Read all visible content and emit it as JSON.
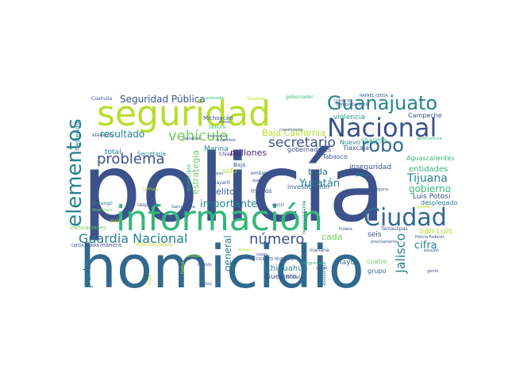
{
  "colors": {
    "background": "#ffffff",
    "palette": [
      "#3b528b",
      "#31688e",
      "#26828e",
      "#1f9e89",
      "#35b779",
      "#6ece58",
      "#b5de2b",
      "#482878",
      "#fde725"
    ]
  },
  "words": [
    {
      "text": "policía",
      "color": "#3b528b"
    },
    {
      "text": "homicidio",
      "color": "#31688e"
    },
    {
      "text": "información",
      "color": "#35b779"
    },
    {
      "text": "seguridad",
      "color": "#b5de2b"
    },
    {
      "text": "Nacional",
      "color": "#3b528b"
    },
    {
      "text": "Guanajuato",
      "color": "#26828e"
    },
    {
      "text": "elementos",
      "color": "#26828e"
    },
    {
      "text": "Ciudad",
      "color": "#31688e"
    },
    {
      "text": "robo",
      "color": "#31688e"
    },
    {
      "text": "Guardia Nacional",
      "color": "#26828e"
    },
    {
      "text": "secretario",
      "color": "#3b528b"
    },
    {
      "text": "problema",
      "color": "#3b528b"
    },
    {
      "text": "vehículo",
      "color": "#6ece58"
    },
    {
      "text": "número",
      "color": "#3b528b"
    },
    {
      "text": "Jalisco",
      "color": "#26828e"
    },
    {
      "text": "Tijuana",
      "color": "#26828e"
    },
    {
      "text": "Seguridad Pública",
      "color": "#3b528b"
    },
    {
      "text": "Baja California",
      "color": "#b5de2b"
    },
    {
      "text": "importante",
      "color": "#26828e"
    },
    {
      "text": "cifra",
      "color": "#26828e"
    },
    {
      "text": "gobierno",
      "color": "#35b779"
    },
    {
      "text": "estrategia",
      "color": "#6ece58"
    },
    {
      "text": "Yucatán",
      "color": "#26828e"
    },
    {
      "text": "resultado",
      "color": "#26828e"
    },
    {
      "text": "parte",
      "color": "#26828e"
    },
    {
      "text": "general",
      "color": "#26828e"
    },
    {
      "text": "entidades",
      "color": "#35b779"
    },
    {
      "text": "millones",
      "color": "#482878"
    },
    {
      "text": "Chihuahua",
      "color": "#26828e"
    },
    {
      "text": "Guerrero",
      "color": "#3b528b"
    },
    {
      "text": "delito",
      "color": "#3b528b"
    },
    {
      "text": "toda",
      "color": "#31688e"
    },
    {
      "text": "Marina",
      "color": "#26828e"
    },
    {
      "text": "cada",
      "color": "#6ece58"
    },
    {
      "text": "San Luis",
      "color": "#b5de2b"
    },
    {
      "text": "Luis Potosí",
      "color": "#3b528b"
    },
    {
      "text": "desplegado",
      "color": "#26828e"
    },
    {
      "text": "Aguascalientes",
      "color": "#35b779"
    },
    {
      "text": "total",
      "color": "#26828e"
    },
    {
      "text": "haciendo",
      "color": "#26828e"
    },
    {
      "text": "sido",
      "color": "#b5de2b"
    },
    {
      "text": "inseguridad",
      "color": "#3b528b"
    },
    {
      "text": "partir",
      "color": "#26828e"
    },
    {
      "text": "mayor",
      "color": "#31688e"
    },
    {
      "text": "seis",
      "color": "#3b528b"
    },
    {
      "text": "menos",
      "color": "#3b528b"
    },
    {
      "text": "Tlaxcala",
      "color": "#3b528b"
    },
    {
      "text": "Tabasco",
      "color": "#3b528b"
    },
    {
      "text": "gobernadores",
      "color": "#3b528b"
    },
    {
      "text": "Campeche",
      "color": "#3b528b"
    },
    {
      "text": "Nuevo León",
      "color": "#26828e"
    },
    {
      "text": "violencia",
      "color": "#1f9e89"
    },
    {
      "text": "investigación",
      "color": "#31688e"
    },
    {
      "text": "Michoacán",
      "color": "#3b528b"
    },
    {
      "text": "municipio",
      "color": "#35b779"
    },
    {
      "text": "Secretaría",
      "color": "#26828e"
    },
    {
      "text": "Coahuila",
      "color": "#3b528b"
    },
    {
      "text": "Sinaloa",
      "color": "#b5de2b"
    },
    {
      "text": "gobernador",
      "color": "#35b779"
    },
    {
      "text": "promedio",
      "color": "#35b779"
    },
    {
      "text": "Sonora",
      "color": "#35b779"
    },
    {
      "text": "atención",
      "color": "#3b528b"
    },
    {
      "text": "Durango",
      "color": "#26828e"
    },
    {
      "text": "Querétaro",
      "color": "#6ece58"
    },
    {
      "text": "instalaciones",
      "color": "#6ece58"
    },
    {
      "text": "OJEDA DURÁN",
      "color": "#3b528b"
    },
    {
      "text": "manera",
      "color": "#3b528b"
    },
    {
      "text": "Alfonso Durazo",
      "color": "#b5de2b"
    },
    {
      "text": "respecto",
      "color": "#3b528b"
    },
    {
      "text": "García Luna",
      "color": "#3b528b"
    },
    {
      "text": "Chiapas",
      "color": "#482878"
    },
    {
      "text": "Nayarit",
      "color": "#3b528b"
    },
    {
      "text": "Baja",
      "color": "#3b528b"
    },
    {
      "text": "embargo",
      "color": "#3b528b"
    },
    {
      "text": "ejemplo",
      "color": "#3b528b"
    },
    {
      "text": "decir",
      "color": "#3b528b"
    },
    {
      "text": "Tamaulipas",
      "color": "#3b528b"
    },
    {
      "text": "alguna",
      "color": "#3b528b"
    },
    {
      "text": "Policía Federal",
      "color": "#3b528b"
    },
    {
      "text": "escalón",
      "color": "#3b528b"
    },
    {
      "text": "DURAZO MONTAÑO",
      "color": "#3b528b"
    },
    {
      "text": "cuatro",
      "color": "#6ece58"
    },
    {
      "text": "grupo",
      "color": "#31688e"
    },
    {
      "text": "asistencia",
      "color": "#26828e"
    },
    {
      "text": "personal",
      "color": "#3b528b"
    },
    {
      "text": "Cuánto",
      "color": "#3b528b"
    },
    {
      "text": "gente",
      "color": "#3b528b"
    },
    {
      "text": "Puebla",
      "color": "#3b528b"
    },
    {
      "text": "mañana",
      "color": "#3b528b"
    },
    {
      "text": "precisamente",
      "color": "#3b528b"
    },
    {
      "text": "RAFAEL OJEDA",
      "color": "#3b528b"
    },
    {
      "text": "trabajando",
      "color": "#3b528b"
    },
    {
      "text": "comportamiento",
      "color": "#3b528b"
    },
    {
      "text": "cifra negro",
      "color": "#35b779"
    },
    {
      "text": "delincuencia",
      "color": "#35b779"
    },
    {
      "text": "crecimiento",
      "color": "#3b528b"
    },
    {
      "text": "mesa",
      "color": "#3b528b"
    },
    {
      "text": "reuniones",
      "color": "#3b528b"
    },
    {
      "text": "diciembre",
      "color": "#3b528b"
    },
    {
      "text": "cosas",
      "color": "#3b528b"
    },
    {
      "text": "tentativa",
      "color": "#3b528b"
    },
    {
      "text": "pais",
      "color": "#b5de2b"
    },
    {
      "text": "temas",
      "color": "#b5de2b"
    },
    {
      "text": "representante",
      "color": "#26828e"
    },
    {
      "text": "kilogramos",
      "color": "#35b779"
    },
    {
      "text": "pueden",
      "color": "#b5de2b"
    },
    {
      "text": "vacas",
      "color": "#3b528b"
    },
    {
      "text": "casos",
      "color": "#3b528b"
    },
    {
      "text": "lugar",
      "color": "#b5de2b"
    },
    {
      "text": "hoy",
      "color": "#3b528b"
    },
    {
      "text": "tema",
      "color": "#b5de2b"
    },
    {
      "text": "estado",
      "color": "#b5de2b"
    },
    {
      "text": "armas",
      "color": "#b5de2b"
    }
  ]
}
